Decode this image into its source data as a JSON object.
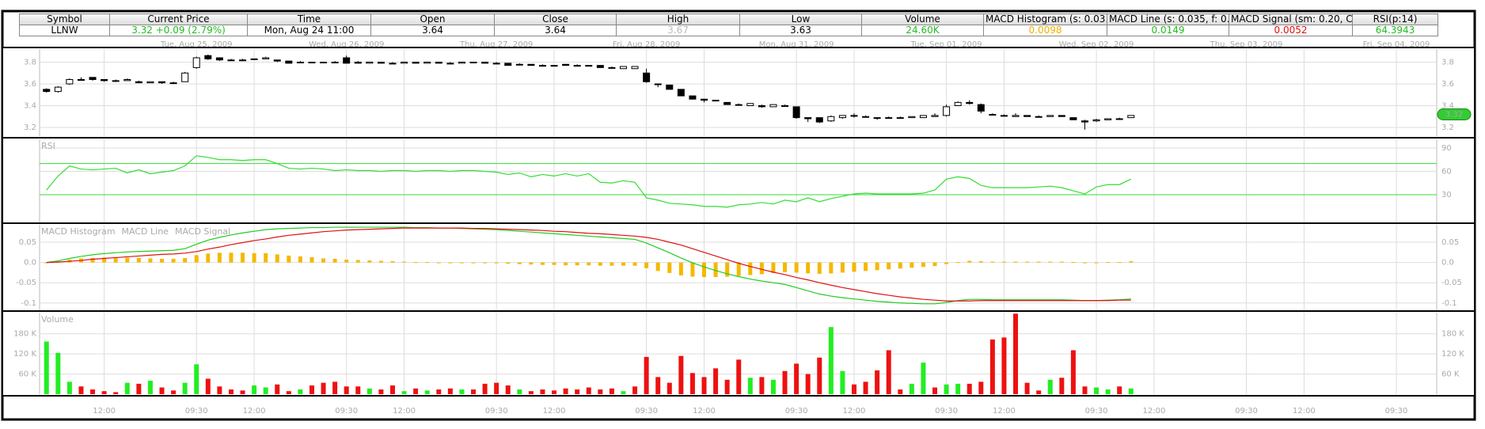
{
  "quote": {
    "headers": [
      "Symbol",
      "Current Price",
      "Time",
      "Open",
      "Close",
      "High",
      "Low",
      "Volume",
      "MACD Histogram (s: 0.03…",
      "MACD Line (s: 0.035, f: 0…",
      "MACD Signal (sm: 0.20, C…",
      "RSI(p:14)"
    ],
    "values": [
      "LLNW",
      "3.32  +0.09 (2.79%)",
      "Mon, Aug 24  11:00",
      "3.64",
      "3.64",
      "3.67",
      "3.63",
      "24.60K",
      "0.0098",
      "0.0149",
      "0.0052",
      "64.3943"
    ]
  },
  "time_axis": {
    "xlim": [
      -0.6,
      120.5
    ],
    "xticks": [
      {
        "value": 5,
        "label": "12:00"
      },
      {
        "value": 13,
        "label": "09:30"
      },
      {
        "value": 18,
        "label": "12:00"
      },
      {
        "value": 26,
        "label": "09:30"
      },
      {
        "value": 31,
        "label": "12:00"
      },
      {
        "value": 39,
        "label": "09:30"
      },
      {
        "value": 44,
        "label": "12:00"
      },
      {
        "value": 52,
        "label": "09:30"
      },
      {
        "value": 57,
        "label": "12:00"
      },
      {
        "value": 65,
        "label": "09:30"
      },
      {
        "value": 70,
        "label": "12:00"
      },
      {
        "value": 78,
        "label": "09:30"
      },
      {
        "value": 83,
        "label": "12:00"
      },
      {
        "value": 91,
        "label": "09:30"
      },
      {
        "value": 96,
        "label": "12:00"
      },
      {
        "value": 104,
        "label": "09:30"
      },
      {
        "value": 109,
        "label": "12:00"
      },
      {
        "value": 117,
        "label": "09:30"
      }
    ],
    "date_ticks": [
      {
        "value": 13,
        "label": "Tue, Aug 25, 2009"
      },
      {
        "value": 26,
        "label": "Wed, Aug 26, 2009"
      },
      {
        "value": 39,
        "label": "Thu, Aug 27, 2009"
      },
      {
        "value": 52,
        "label": "Fri, Aug 28, 2009"
      },
      {
        "value": 65,
        "label": "Mon, Aug 31, 2009"
      },
      {
        "value": 78,
        "label": "Tue, Sep 01, 2009"
      },
      {
        "value": 91,
        "label": "Wed, Sep 02, 2009"
      },
      {
        "value": 104,
        "label": "Thu, Sep 03, 2009"
      },
      {
        "value": 117,
        "label": "Fri, Sep 04, 2009"
      }
    ]
  },
  "chart_data": [
    {
      "type": "candlestick",
      "ylim": [
        3.12,
        3.92
      ],
      "yticks": [
        3.2,
        3.4,
        3.6,
        3.8
      ],
      "last_price": 3.32,
      "last_color": "#33cc33",
      "open": [
        3.55,
        3.53,
        3.6,
        3.64,
        3.66,
        3.64,
        3.63,
        3.63,
        3.62,
        3.61,
        3.62,
        3.61,
        3.62,
        3.75,
        3.86,
        3.84,
        3.82,
        3.82,
        3.83,
        3.83,
        3.82,
        3.81,
        3.8,
        3.8,
        3.8,
        3.8,
        3.84,
        3.8,
        3.79,
        3.8,
        3.79,
        3.79,
        3.8,
        3.79,
        3.8,
        3.79,
        3.79,
        3.8,
        3.8,
        3.79,
        3.79,
        3.78,
        3.78,
        3.77,
        3.77,
        3.78,
        3.77,
        3.77,
        3.77,
        3.75,
        3.74,
        3.74,
        3.7,
        3.6,
        3.59,
        3.55,
        3.49,
        3.46,
        3.45,
        3.43,
        3.41,
        3.4,
        3.4,
        3.39,
        3.4,
        3.39,
        3.29,
        3.29,
        3.26,
        3.29,
        3.31,
        3.3,
        3.29,
        3.29,
        3.29,
        3.29,
        3.29,
        3.3,
        3.31,
        3.4,
        3.43,
        3.41,
        3.32,
        3.31,
        3.3,
        3.31,
        3.3,
        3.3,
        3.31,
        3.29,
        3.26,
        3.26,
        3.27,
        3.28,
        3.29
      ],
      "high": [
        3.56,
        3.58,
        3.65,
        3.66,
        3.66,
        3.64,
        3.64,
        3.65,
        3.63,
        3.62,
        3.62,
        3.62,
        3.71,
        3.85,
        3.87,
        3.84,
        3.83,
        3.83,
        3.83,
        3.85,
        3.82,
        3.81,
        3.81,
        3.8,
        3.8,
        3.81,
        3.86,
        3.81,
        3.8,
        3.8,
        3.8,
        3.8,
        3.8,
        3.8,
        3.8,
        3.8,
        3.8,
        3.8,
        3.8,
        3.8,
        3.79,
        3.79,
        3.78,
        3.78,
        3.77,
        3.78,
        3.78,
        3.77,
        3.77,
        3.76,
        3.76,
        3.76,
        3.74,
        3.6,
        3.59,
        3.55,
        3.49,
        3.46,
        3.45,
        3.43,
        3.42,
        3.42,
        3.41,
        3.41,
        3.41,
        3.39,
        3.29,
        3.29,
        3.31,
        3.31,
        3.33,
        3.31,
        3.29,
        3.3,
        3.3,
        3.3,
        3.31,
        3.33,
        3.41,
        3.44,
        3.45,
        3.42,
        3.33,
        3.32,
        3.33,
        3.31,
        3.31,
        3.31,
        3.31,
        3.29,
        3.27,
        3.28,
        3.28,
        3.29,
        3.31
      ],
      "low": [
        3.52,
        3.52,
        3.59,
        3.63,
        3.63,
        3.62,
        3.62,
        3.63,
        3.61,
        3.61,
        3.6,
        3.61,
        3.62,
        3.74,
        3.82,
        3.81,
        3.82,
        3.82,
        3.82,
        3.83,
        3.8,
        3.79,
        3.79,
        3.79,
        3.8,
        3.8,
        3.79,
        3.79,
        3.79,
        3.79,
        3.79,
        3.79,
        3.79,
        3.79,
        3.79,
        3.79,
        3.79,
        3.79,
        3.79,
        3.79,
        3.77,
        3.77,
        3.77,
        3.77,
        3.76,
        3.77,
        3.77,
        3.76,
        3.75,
        3.74,
        3.74,
        3.74,
        3.61,
        3.57,
        3.55,
        3.49,
        3.46,
        3.43,
        3.44,
        3.41,
        3.4,
        3.4,
        3.38,
        3.39,
        3.4,
        3.28,
        3.25,
        3.24,
        3.25,
        3.28,
        3.29,
        3.29,
        3.27,
        3.28,
        3.29,
        3.29,
        3.29,
        3.3,
        3.3,
        3.4,
        3.41,
        3.33,
        3.31,
        3.3,
        3.3,
        3.3,
        3.3,
        3.3,
        3.3,
        3.27,
        3.18,
        3.25,
        3.27,
        3.28,
        3.29
      ],
      "close": [
        3.53,
        3.57,
        3.64,
        3.64,
        3.64,
        3.63,
        3.63,
        3.64,
        3.61,
        3.62,
        3.61,
        3.61,
        3.7,
        3.84,
        3.83,
        3.82,
        3.82,
        3.82,
        3.83,
        3.84,
        3.81,
        3.79,
        3.8,
        3.8,
        3.8,
        3.8,
        3.79,
        3.79,
        3.8,
        3.79,
        3.79,
        3.8,
        3.79,
        3.8,
        3.79,
        3.79,
        3.8,
        3.8,
        3.79,
        3.79,
        3.77,
        3.78,
        3.77,
        3.77,
        3.77,
        3.77,
        3.77,
        3.77,
        3.75,
        3.75,
        3.76,
        3.76,
        3.62,
        3.6,
        3.55,
        3.49,
        3.46,
        3.45,
        3.45,
        3.41,
        3.41,
        3.42,
        3.39,
        3.41,
        3.4,
        3.29,
        3.28,
        3.25,
        3.3,
        3.31,
        3.31,
        3.3,
        3.29,
        3.29,
        3.29,
        3.3,
        3.31,
        3.31,
        3.39,
        3.43,
        3.42,
        3.35,
        3.32,
        3.31,
        3.31,
        3.3,
        3.3,
        3.31,
        3.3,
        3.27,
        3.25,
        3.27,
        3.28,
        3.28,
        3.31
      ]
    },
    {
      "type": "line",
      "ylim": [
        -5.6,
        101.2
      ],
      "yticks": [
        30,
        60,
        90
      ],
      "reference_lines": [
        70,
        30
      ],
      "reference_color": "#33dd33",
      "series": [
        {
          "name": "RSI",
          "color": "#33dd33",
          "values": [
            36,
            54,
            67,
            63,
            62,
            63,
            64,
            58,
            62,
            57,
            59,
            61,
            67,
            80,
            78,
            75,
            75,
            74,
            75,
            75,
            70,
            64,
            63,
            64,
            63,
            61,
            62,
            61,
            61,
            60,
            61,
            61,
            60,
            61,
            61,
            60,
            61,
            61,
            60,
            59,
            56,
            58,
            53,
            56,
            54,
            57,
            54,
            57,
            46,
            45,
            48,
            46,
            26,
            23,
            19,
            18,
            17,
            15,
            15,
            14,
            17,
            18,
            20,
            18,
            23,
            21,
            26,
            21,
            25,
            28,
            31,
            32,
            31,
            31,
            31,
            31,
            32,
            36,
            50,
            53,
            51,
            42,
            39,
            39,
            39,
            39,
            40,
            41,
            39,
            35,
            31,
            40,
            43,
            43,
            50
          ]
        }
      ]
    },
    {
      "type": "combo",
      "ylim": [
        -0.118,
        0.093
      ],
      "yticks": [
        -0.1,
        -0.05,
        {
          "value": 0,
          "label": "0.0"
        },
        0.05
      ],
      "series": [
        {
          "name": "MACD Histogram",
          "color": "#f5b800",
          "kind": "bar",
          "values": [
            0,
            0.003,
            0.007,
            0.01,
            0.011,
            0.012,
            0.012,
            0.012,
            0.011,
            0.01,
            0.009,
            0.009,
            0.011,
            0.018,
            0.022,
            0.024,
            0.024,
            0.024,
            0.023,
            0.023,
            0.02,
            0.017,
            0.015,
            0.013,
            0.01,
            0.009,
            0.007,
            0.006,
            0.005,
            0.004,
            0.003,
            0.002,
            0.001,
            0.001,
            0,
            0,
            -0.001,
            -0.001,
            -0.002,
            -0.002,
            -0.003,
            -0.004,
            -0.005,
            -0.006,
            -0.006,
            -0.007,
            -0.007,
            -0.007,
            -0.008,
            -0.008,
            -0.008,
            -0.008,
            -0.014,
            -0.021,
            -0.026,
            -0.032,
            -0.035,
            -0.036,
            -0.036,
            -0.035,
            -0.033,
            -0.031,
            -0.029,
            -0.026,
            -0.024,
            -0.025,
            -0.027,
            -0.028,
            -0.027,
            -0.025,
            -0.023,
            -0.021,
            -0.019,
            -0.017,
            -0.015,
            -0.013,
            -0.011,
            -0.009,
            -0.004,
            0.001,
            0.004,
            0.003,
            0.002,
            0.002,
            0.002,
            0.002,
            0.002,
            0.002,
            0.002,
            0.001,
            0,
            0,
            0.001,
            0.001,
            0.003
          ]
        },
        {
          "name": "MACD Line",
          "color": "#22cc22",
          "kind": "line",
          "values": [
            0,
            0.004,
            0.01,
            0.015,
            0.019,
            0.022,
            0.024,
            0.026,
            0.027,
            0.028,
            0.029,
            0.03,
            0.034,
            0.045,
            0.055,
            0.062,
            0.068,
            0.073,
            0.077,
            0.081,
            0.083,
            0.084,
            0.085,
            0.086,
            0.086,
            0.087,
            0.087,
            0.087,
            0.087,
            0.087,
            0.087,
            0.087,
            0.086,
            0.086,
            0.085,
            0.085,
            0.084,
            0.083,
            0.082,
            0.081,
            0.079,
            0.077,
            0.075,
            0.073,
            0.071,
            0.069,
            0.067,
            0.065,
            0.063,
            0.061,
            0.059,
            0.057,
            0.048,
            0.036,
            0.024,
            0.011,
            -0.001,
            -0.011,
            -0.02,
            -0.028,
            -0.035,
            -0.041,
            -0.046,
            -0.05,
            -0.054,
            -0.062,
            -0.07,
            -0.078,
            -0.083,
            -0.087,
            -0.09,
            -0.093,
            -0.096,
            -0.098,
            -0.1,
            -0.101,
            -0.102,
            -0.102,
            -0.099,
            -0.094,
            -0.091,
            -0.091,
            -0.092,
            -0.092,
            -0.092,
            -0.092,
            -0.092,
            -0.092,
            -0.092,
            -0.093,
            -0.094,
            -0.094,
            -0.093,
            -0.092,
            -0.09
          ]
        },
        {
          "name": "MACD Signal",
          "color": "#e01010",
          "kind": "line",
          "values": [
            0,
            0.001,
            0.003,
            0.005,
            0.008,
            0.01,
            0.012,
            0.014,
            0.016,
            0.018,
            0.02,
            0.021,
            0.023,
            0.027,
            0.033,
            0.038,
            0.044,
            0.049,
            0.054,
            0.058,
            0.063,
            0.067,
            0.07,
            0.073,
            0.076,
            0.078,
            0.08,
            0.081,
            0.082,
            0.083,
            0.084,
            0.085,
            0.085,
            0.085,
            0.085,
            0.085,
            0.085,
            0.084,
            0.084,
            0.083,
            0.082,
            0.081,
            0.08,
            0.079,
            0.077,
            0.076,
            0.074,
            0.072,
            0.071,
            0.069,
            0.067,
            0.065,
            0.062,
            0.057,
            0.05,
            0.043,
            0.034,
            0.025,
            0.016,
            0.007,
            -0.002,
            -0.01,
            -0.017,
            -0.024,
            -0.03,
            -0.037,
            -0.043,
            -0.05,
            -0.056,
            -0.062,
            -0.067,
            -0.072,
            -0.077,
            -0.081,
            -0.085,
            -0.088,
            -0.091,
            -0.093,
            -0.095,
            -0.095,
            -0.095,
            -0.094,
            -0.094,
            -0.094,
            -0.094,
            -0.094,
            -0.094,
            -0.094,
            -0.094,
            -0.094,
            -0.094,
            -0.094,
            -0.094,
            -0.093,
            -0.093
          ]
        }
      ]
    },
    {
      "type": "bar",
      "title": "Volume",
      "title_color": "#33dd33",
      "ylim": [
        0,
        243000
      ],
      "yticks": [
        {
          "value": 60000,
          "label": "60 K"
        },
        {
          "value": 120000,
          "label": "120 K"
        },
        {
          "value": 180000,
          "label": "180 K"
        }
      ],
      "up_color": "#22ee22",
      "down_color": "#ee1111",
      "values": [
        157000,
        123000,
        37000,
        23000,
        14000,
        9000,
        6000,
        34000,
        31000,
        40000,
        20000,
        11000,
        34000,
        89000,
        46000,
        23000,
        14000,
        11000,
        26000,
        20000,
        29000,
        9000,
        14000,
        26000,
        34000,
        37000,
        23000,
        23000,
        17000,
        14000,
        26000,
        9000,
        17000,
        11000,
        14000,
        17000,
        14000,
        14000,
        31000,
        34000,
        26000,
        14000,
        9000,
        14000,
        11000,
        17000,
        14000,
        20000,
        14000,
        17000,
        9000,
        23000,
        111000,
        51000,
        34000,
        114000,
        63000,
        51000,
        77000,
        43000,
        103000,
        49000,
        51000,
        43000,
        69000,
        91000,
        60000,
        109000,
        200000,
        69000,
        29000,
        37000,
        71000,
        131000,
        14000,
        31000,
        94000,
        20000,
        29000,
        31000,
        31000,
        37000,
        163000,
        169000,
        240000,
        34000,
        11000,
        43000,
        49000,
        131000,
        23000,
        20000,
        14000,
        23000,
        17000
      ]
    }
  ]
}
